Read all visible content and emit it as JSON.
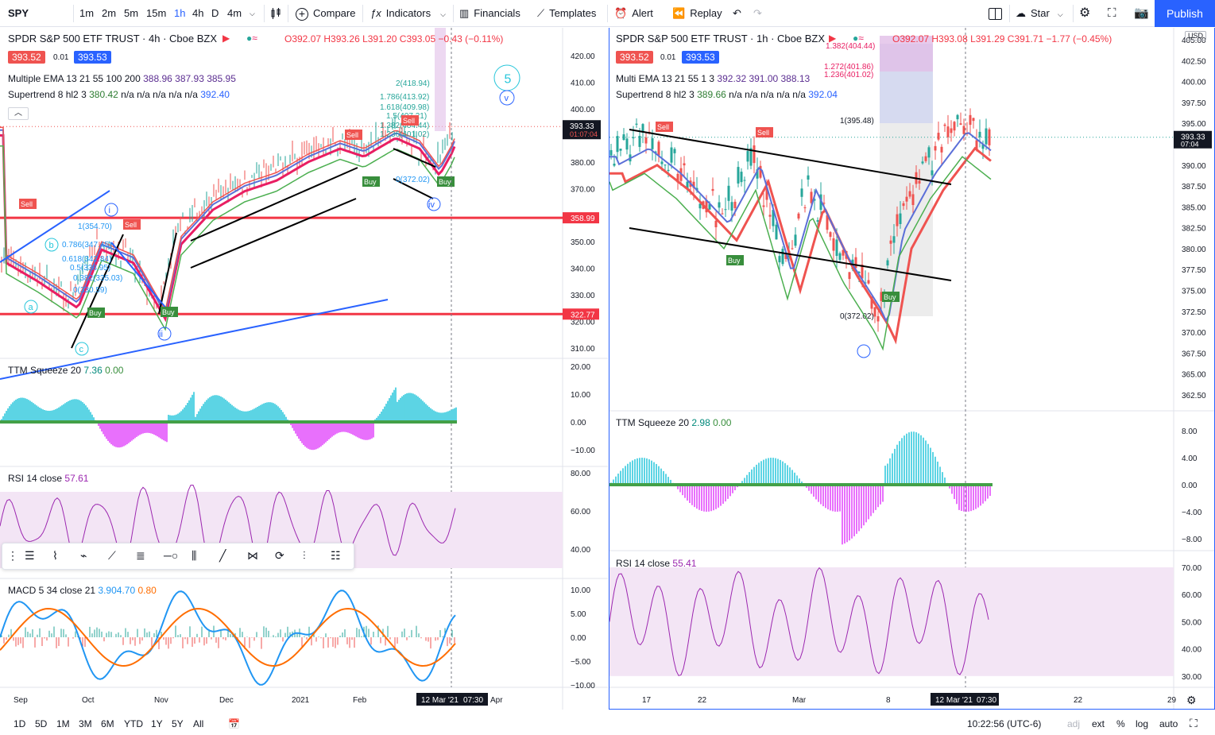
{
  "toolbar": {
    "symbol": "SPY",
    "intervals": [
      "1m",
      "2m",
      "5m",
      "15m",
      "1h",
      "4h",
      "D",
      "4m"
    ],
    "active_interval": "1h",
    "compare": "Compare",
    "indicators": "Indicators",
    "financials": "Financials",
    "templates": "Templates",
    "alert": "Alert",
    "replay": "Replay",
    "star": "Star",
    "publish": "Publish"
  },
  "left": {
    "title": "SPDR S&P 500 ETF TRUST · 4h · Cboe BZX",
    "ohlc": "O392.07 H393.26 L391.20 C393.05 −0.43 (−0.11%)",
    "sell_price": "393.52",
    "spread": "0.01",
    "buy_price": "393.53",
    "ema_label": "Multiple EMA 13 21 55 100 200",
    "ema_values": "388.96  387.93  385.95",
    "supertrend_label": "Supertrend 8 hl2 3",
    "supertrend_values_a": "380.42",
    "supertrend_values_b": "n/a  n/a  n/a  n/a  n/a",
    "supertrend_values_c": "392.40",
    "price_axis": [
      "420.00",
      "410.00",
      "400.00",
      "380.00",
      "370.00",
      "350.00",
      "340.00",
      "330.00",
      "320.00",
      "310.00"
    ],
    "current_price": "393.33",
    "countdown": "01:07:04",
    "level_high": "358.99",
    "level_low": "322.77",
    "ttm_label": "TTM Squeeze 20",
    "ttm_v1": "7.36",
    "ttm_v2": "0.00",
    "ttm_axis": [
      "20.00",
      "10.00",
      "0.00",
      "−10.00"
    ],
    "rsi_label": "RSI 14 close",
    "rsi_value": "57.61",
    "rsi_axis": [
      "80.00",
      "60.00",
      "40.00"
    ],
    "macd_label": "MACD 5 34 close 21",
    "macd_v1": "3.90",
    "macd_v2": "4.70",
    "macd_v3": "0.80",
    "macd_axis": [
      "10.00",
      "5.00",
      "0.00",
      "−5.00",
      "−10.00"
    ],
    "time_axis": [
      "Sep",
      "Oct",
      "Nov",
      "Dec",
      "2021",
      "Feb",
      "Apr"
    ],
    "cursor_date": "12 Mar '21",
    "cursor_time": "07:30",
    "fib_labels": [
      "2(418.94)",
      "1.786(413.92)",
      "1.618(409.98)",
      "1.5(407.21)",
      "1.382(404.44)",
      "1.236(401.02)",
      "1(354.70)",
      "0.786(347.45)",
      "0.618(342.84)",
      "0.5(338.95)",
      "0.382(335.03)",
      "0(330.59)",
      "0(372.02)"
    ],
    "wave_labels": [
      "5",
      "v",
      "i",
      "ii",
      "iv",
      "c",
      "a",
      "b"
    ],
    "sell_tag": "Sell",
    "buy_tag": "Buy"
  },
  "right": {
    "title": "SPDR S&P 500 ETF TRUST · 1h · Cboe BZX",
    "ohlc": "O392.07 H393.08 L391.29 C391.71 −1.77 (−0.45%)",
    "sell_price": "393.52",
    "spread": "0.01",
    "buy_price": "393.53",
    "ema_label": "Multi EMA 13 21 55 1 3",
    "ema_values": "392.32  391.00  388.13",
    "supertrend_label": "Supertrend 8 hl2 3",
    "supertrend_values_a": "389.66",
    "supertrend_values_b": "n/a  n/a  n/a  n/a  n/a",
    "supertrend_values_c": "392.04",
    "currency": "USD",
    "price_axis": [
      "405.00",
      "402.50",
      "400.00",
      "397.50",
      "395.00",
      "392.50",
      "390.00",
      "387.50",
      "385.00",
      "382.50",
      "380.00",
      "377.50",
      "375.00",
      "372.50",
      "370.00",
      "367.50",
      "365.00",
      "362.50"
    ],
    "current_price": "393.33",
    "countdown": "07:04",
    "ttm_label": "TTM Squeeze 20",
    "ttm_v1": "2.98",
    "ttm_v2": "0.00",
    "ttm_axis": [
      "8.00",
      "4.00",
      "0.00",
      "−4.00",
      "−8.00"
    ],
    "rsi_label": "RSI 14 close",
    "rsi_value": "55.41",
    "rsi_axis": [
      "70.00",
      "60.00",
      "50.00",
      "40.00",
      "30.00"
    ],
    "time_axis": [
      "17",
      "22",
      "Mar",
      "8",
      "22",
      "29"
    ],
    "cursor_date": "12 Mar '21",
    "cursor_time": "07:30",
    "fib_labels": [
      "1.382(404.44)",
      "1.272(401.86)",
      "1.236(401.02)",
      "1(395.48)",
      "0(372.02)"
    ],
    "sell_tag": "Sell",
    "buy_tag": "Buy"
  },
  "bottombar": {
    "ranges": [
      "1D",
      "5D",
      "1M",
      "3M",
      "6M",
      "YTD",
      "1Y",
      "5Y",
      "All"
    ],
    "clock": "10:22:56 (UTC-6)",
    "adj": "adj",
    "ext": "ext",
    "pct": "%",
    "log": "log",
    "auto": "auto"
  },
  "colors": {
    "accent": "#2962ff",
    "sell": "#ef5350",
    "buy": "#2962ff",
    "level": "#f23645",
    "ema_red": "#ef5350",
    "ema_blue": "#5b6fd8",
    "ema_pink": "#e91e63",
    "supertrend": "#4caf50",
    "ttm_pos": "#26c6da",
    "ttm_neg": "#e040fb",
    "rsi_band": "#f3e5f5",
    "rsi_line": "#9c27b0",
    "macd_line": "#2196f3",
    "signal_line": "#ff6d00"
  }
}
